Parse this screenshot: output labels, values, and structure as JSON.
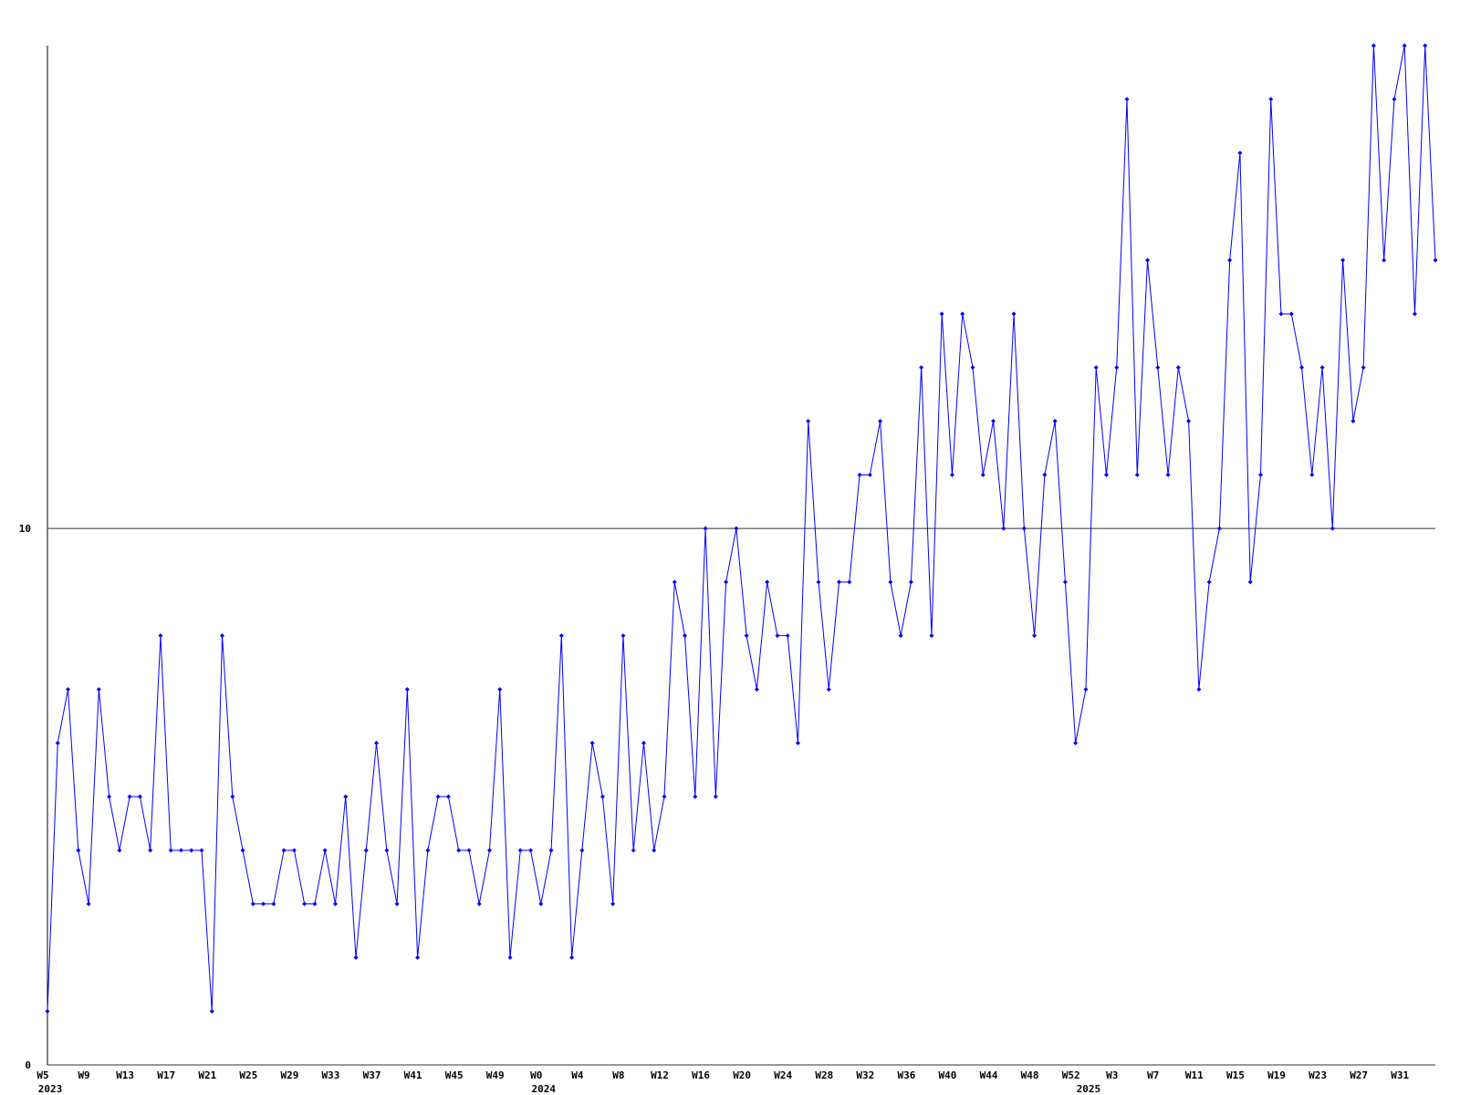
{
  "chart_data": {
    "type": "line",
    "categories": [
      "W5",
      null,
      null,
      null,
      "W9",
      null,
      null,
      null,
      "W13",
      null,
      null,
      null,
      "W17",
      null,
      null,
      null,
      "W21",
      null,
      null,
      null,
      "W25",
      null,
      null,
      null,
      "W29",
      null,
      null,
      null,
      "W33",
      null,
      null,
      null,
      "W37",
      null,
      null,
      null,
      "W41",
      null,
      null,
      null,
      "W45",
      null,
      null,
      null,
      "W49",
      null,
      null,
      null,
      "W0",
      null,
      null,
      null,
      "W4",
      null,
      null,
      null,
      "W8",
      null,
      null,
      null,
      "W12",
      null,
      null,
      null,
      "W16",
      null,
      null,
      null,
      "W20",
      null,
      null,
      null,
      "W24",
      null,
      null,
      null,
      "W28",
      null,
      null,
      null,
      "W32",
      null,
      null,
      null,
      "W36",
      null,
      null,
      null,
      "W40",
      null,
      null,
      null,
      "W44",
      null,
      null,
      null,
      "W48",
      null,
      null,
      null,
      "W52",
      null,
      null,
      null,
      "W3",
      null,
      null,
      null,
      "W7",
      null,
      null,
      null,
      "W11",
      null,
      null,
      null,
      "W15",
      null,
      null,
      null,
      "W19",
      null,
      null,
      null,
      "W23",
      null,
      null,
      null,
      "W27",
      null,
      null,
      null,
      "W31",
      null,
      null,
      null
    ],
    "category_years": [
      "2023",
      null,
      null,
      null,
      null,
      null,
      null,
      null,
      null,
      null,
      null,
      null,
      null,
      null,
      null,
      null,
      null,
      null,
      null,
      null,
      null,
      null,
      null,
      null,
      null,
      null,
      null,
      null,
      null,
      null,
      null,
      null,
      null,
      null,
      null,
      null,
      null,
      null,
      null,
      null,
      null,
      null,
      null,
      null,
      null,
      null,
      null,
      null,
      "2024",
      null,
      null,
      null,
      null,
      null,
      null,
      null,
      null,
      null,
      null,
      null,
      null,
      null,
      null,
      null,
      null,
      null,
      null,
      null,
      null,
      null,
      null,
      null,
      null,
      null,
      null,
      null,
      null,
      null,
      null,
      null,
      null,
      null,
      null,
      null,
      null,
      null,
      null,
      null,
      null,
      null,
      null,
      null,
      null,
      null,
      null,
      null,
      null,
      null,
      null,
      null,
      null,
      "2025",
      null,
      null,
      null,
      null,
      null,
      null,
      null,
      null,
      null,
      null,
      null,
      null,
      null,
      null,
      null,
      null,
      null,
      null,
      null,
      null,
      null,
      null,
      null,
      null,
      null,
      null,
      null,
      null,
      null,
      null,
      null,
      null,
      null,
      null
    ],
    "series": [
      {
        "color": "#0000ff",
        "values": [
          1,
          6,
          7,
          4,
          3,
          7,
          5,
          4,
          5,
          5,
          4,
          8,
          4,
          4,
          4,
          4,
          1,
          8,
          5,
          4,
          3,
          3,
          3,
          4,
          4,
          3,
          3,
          4,
          3,
          5,
          2,
          4,
          6,
          4,
          3,
          7,
          2,
          4,
          5,
          5,
          4,
          4,
          3,
          4,
          7,
          2,
          4,
          4,
          3,
          4,
          8,
          2,
          4,
          6,
          5,
          3,
          8,
          4,
          6,
          4,
          5,
          9,
          8,
          5,
          10,
          5,
          9,
          10,
          8,
          7,
          9,
          8,
          8,
          6,
          12,
          9,
          7,
          9,
          9,
          11,
          11,
          12,
          9,
          8,
          9,
          13,
          8,
          14,
          11,
          14,
          13,
          11,
          12,
          10,
          14,
          10,
          8,
          11,
          12,
          9,
          6,
          7,
          13,
          11,
          13,
          18,
          11,
          15,
          13,
          11,
          13,
          12,
          7,
          9,
          10,
          15,
          17,
          9,
          11,
          18,
          14,
          14,
          13,
          11,
          13,
          10,
          15,
          12,
          13,
          19,
          15,
          18,
          19,
          14,
          19,
          15
        ]
      }
    ],
    "ylim": [
      0,
      19
    ],
    "yticks": [
      0,
      10
    ],
    "grid": true
  }
}
